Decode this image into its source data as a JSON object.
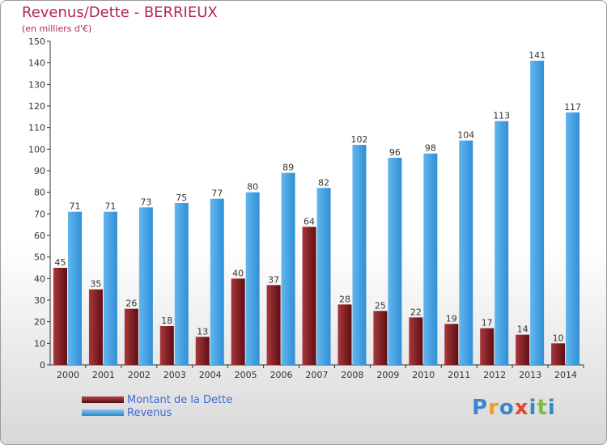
{
  "chart_data": {
    "type": "bar",
    "title": "Revenus/Dette - BERRIEUX",
    "subtitle": "(en milliers d'€)",
    "categories": [
      "2000",
      "2001",
      "2002",
      "2003",
      "2004",
      "2005",
      "2006",
      "2007",
      "2008",
      "2009",
      "2010",
      "2011",
      "2012",
      "2013",
      "2014"
    ],
    "series": [
      {
        "name": "Montant de la Dette",
        "color": "#7a1418",
        "values": [
          45,
          35,
          26,
          18,
          13,
          40,
          37,
          64,
          28,
          25,
          22,
          19,
          17,
          14,
          10
        ]
      },
      {
        "name": "Revenus",
        "color": "#3d9ee3",
        "values": [
          71,
          71,
          73,
          75,
          77,
          80,
          89,
          82,
          102,
          96,
          98,
          104,
          113,
          141,
          117
        ]
      }
    ],
    "ylim": [
      0,
      150
    ],
    "yticks": [
      0,
      10,
      20,
      30,
      40,
      50,
      60,
      70,
      80,
      90,
      100,
      110,
      120,
      130,
      140,
      150
    ],
    "grid": false,
    "legend_position": "bottom-left"
  },
  "logo": {
    "text": "Proxiti",
    "colors": [
      "#3d87c8",
      "#f39a1e",
      "#3d87c8",
      "#e8462b",
      "#3d87c8",
      "#7cbf3f",
      "#3d87c8"
    ]
  }
}
